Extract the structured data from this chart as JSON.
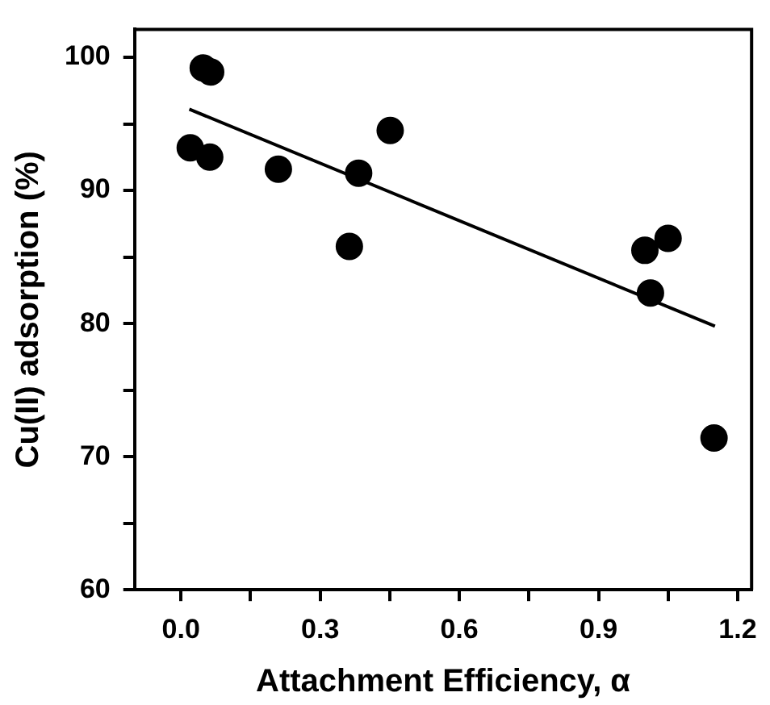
{
  "chart_data": {
    "type": "scatter",
    "xlabel": "Attachment Efficiency, α",
    "ylabel": "Cu(II) adsorption (%)",
    "xlim": [
      -0.1,
      1.23
    ],
    "ylim": [
      60,
      102.1
    ],
    "xticks": [
      {
        "value": 0,
        "label": "0.0"
      },
      {
        "value": 0.15,
        "label": null
      },
      {
        "value": 0.3,
        "label": "0.3"
      },
      {
        "value": 0.45,
        "label": null
      },
      {
        "value": 0.6,
        "label": "0.6"
      },
      {
        "value": 0.75,
        "label": null
      },
      {
        "value": 0.9,
        "label": "0.9"
      },
      {
        "value": 1.05,
        "label": null
      },
      {
        "value": 1.2,
        "label": "1.2"
      }
    ],
    "yticks": [
      60,
      {
        "value": 65,
        "label": null
      },
      70,
      {
        "value": 75,
        "label": null
      },
      80,
      {
        "value": 85,
        "label": null
      },
      90,
      {
        "value": 95,
        "label": null
      },
      100
    ],
    "grid": false,
    "legend": false,
    "series": [
      {
        "type": "scatter",
        "color": "#000000",
        "marker": "circle",
        "x": [
          0.048,
          0.064,
          0.02,
          0.062,
          0.21,
          0.383,
          0.451,
          0.363,
          1.0,
          1.05,
          1.012,
          1.149
        ],
        "values": [
          99.2,
          98.9,
          93.2,
          92.5,
          91.6,
          91.3,
          94.5,
          85.8,
          85.5,
          86.4,
          82.3,
          71.4
        ]
      },
      {
        "type": "line",
        "color": "#000000",
        "marker": "none",
        "line_style": "solid",
        "x": [
          0.018,
          1.151
        ],
        "values": [
          96.1,
          79.8
        ]
      }
    ]
  }
}
